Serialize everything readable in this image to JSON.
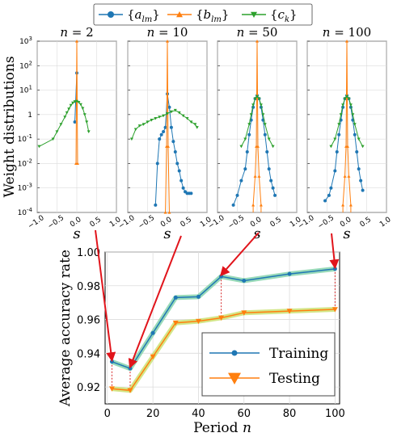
{
  "chart_data": [
    {
      "type": "line",
      "panel": "weight distributions",
      "ylabel": "Weight distributions",
      "yscale": "log",
      "ylim": [
        0.0001,
        1000
      ],
      "yticks": [
        "10^-4",
        "10^-3",
        "10^-2",
        "10^-1",
        "1",
        "10^1",
        "10^2",
        "10^3"
      ],
      "xlim": [
        -1.0,
        1.0
      ],
      "xticks": [
        "-1.0",
        "-0.5",
        "0.0",
        "0.5",
        "1.0"
      ],
      "xlabel": "s",
      "grid": true,
      "legend": {
        "placement": "top-center",
        "entries": [
          {
            "label": "{a_lm}",
            "color": "#1f77b4",
            "marker": "circle"
          },
          {
            "label": "{b_lm}",
            "color": "#ff7f0e",
            "marker": "triangle-up"
          },
          {
            "label": "{c_k}",
            "color": "#2ca02c",
            "marker": "triangle-down"
          }
        ]
      },
      "subplots": [
        {
          "title": "n = 2",
          "series": [
            {
              "name": "{a_lm}",
              "x": [
                -0.05,
                0.0
              ],
              "y": [
                0.5,
                50
              ]
            },
            {
              "name": "{b_lm}",
              "x": [
                -0.02,
                0.0,
                0.02
              ],
              "y": [
                0.01,
                1000,
                0.01
              ]
            },
            {
              "name": "{c_k}",
              "x": [
                -0.95,
                -0.6,
                -0.5,
                -0.4,
                -0.3,
                -0.25,
                -0.2,
                -0.15,
                -0.1,
                -0.05,
                0.0,
                0.05,
                0.1,
                0.15,
                0.2,
                0.25,
                0.3
              ],
              "y": [
                0.05,
                0.1,
                0.2,
                0.4,
                0.8,
                1.2,
                1.7,
                2.4,
                3.0,
                3.4,
                3.5,
                3.2,
                2.6,
                1.8,
                1.0,
                0.5,
                0.2
              ]
            }
          ]
        },
        {
          "title": "n = 10",
          "series": [
            {
              "name": "{a_lm}",
              "x": [
                -0.3,
                -0.25,
                -0.2,
                -0.15,
                -0.1,
                -0.05,
                0.0,
                0.05,
                0.1,
                0.15,
                0.2,
                0.25,
                0.3,
                0.35,
                0.4,
                0.45,
                0.5,
                0.55,
                0.6
              ],
              "y": [
                0.0002,
                0.01,
                0.1,
                0.15,
                0.2,
                0.3,
                7,
                2.0,
                0.3,
                0.08,
                0.03,
                0.01,
                0.005,
                0.002,
                0.001,
                0.0007,
                0.0006,
                0.0006,
                0.0006
              ]
            },
            {
              "name": "{b_lm}",
              "x": [
                -0.05,
                -0.02,
                0.0,
                0.02,
                0.05
              ],
              "y": [
                0.0001,
                0.05,
                1000,
                0.05,
                0.0001
              ]
            },
            {
              "name": "{c_k}",
              "x": [
                -0.9,
                -0.8,
                -0.7,
                -0.6,
                -0.5,
                -0.4,
                -0.3,
                -0.2,
                -0.1,
                0.0,
                0.1,
                0.2,
                0.3,
                0.4,
                0.5,
                0.6,
                0.7,
                0.75
              ],
              "y": [
                0.1,
                0.25,
                0.35,
                0.4,
                0.5,
                0.6,
                0.7,
                0.8,
                0.9,
                1.1,
                1.3,
                1.5,
                1.2,
                0.9,
                0.7,
                0.5,
                0.4,
                0.3
              ]
            }
          ]
        },
        {
          "title": "n = 50",
          "series": [
            {
              "name": "{a_lm}",
              "x": [
                -0.6,
                -0.5,
                -0.4,
                -0.3,
                -0.25,
                -0.2,
                -0.15,
                -0.1,
                -0.05,
                0.0,
                0.05,
                0.1,
                0.15,
                0.2,
                0.25,
                0.3,
                0.35,
                0.4,
                0.45
              ],
              "y": [
                0.0002,
                0.0005,
                0.002,
                0.006,
                0.03,
                0.15,
                0.6,
                2.0,
                4.5,
                6.0,
                4.5,
                2.0,
                0.6,
                0.15,
                0.03,
                0.006,
                0.002,
                0.001,
                0.0005
              ]
            },
            {
              "name": "{b_lm}",
              "x": [
                -0.1,
                -0.05,
                -0.02,
                0.0,
                0.02,
                0.05,
                0.1
              ],
              "y": [
                0.0002,
                0.003,
                0.05,
                1000,
                0.05,
                0.003,
                0.0002
              ]
            },
            {
              "name": "{c_k}",
              "x": [
                -0.4,
                -0.3,
                -0.2,
                -0.15,
                -0.1,
                -0.05,
                0.0,
                0.05,
                0.1,
                0.15,
                0.2,
                0.3,
                0.4
              ],
              "y": [
                0.05,
                0.1,
                0.4,
                1.0,
                2.5,
                4.5,
                5.5,
                4.5,
                2.5,
                1.0,
                0.4,
                0.1,
                0.05
              ]
            }
          ]
        },
        {
          "title": "n = 100",
          "series": [
            {
              "name": "{a_lm}",
              "x": [
                -0.55,
                -0.45,
                -0.4,
                -0.3,
                -0.25,
                -0.2,
                -0.15,
                -0.1,
                -0.05,
                0.0,
                0.05,
                0.1,
                0.15,
                0.2,
                0.25,
                0.3,
                0.35,
                0.4
              ],
              "y": [
                0.0003,
                0.0005,
                0.001,
                0.005,
                0.03,
                0.15,
                0.6,
                2.0,
                4.5,
                6.0,
                4.5,
                2.0,
                0.6,
                0.15,
                0.03,
                0.006,
                0.002,
                0.0008
              ]
            },
            {
              "name": "{b_lm}",
              "x": [
                -0.1,
                -0.05,
                -0.02,
                0.0,
                0.02,
                0.05,
                0.1
              ],
              "y": [
                0.0002,
                0.003,
                0.05,
                1000,
                0.05,
                0.003,
                0.0002
              ]
            },
            {
              "name": "{c_k}",
              "x": [
                -0.4,
                -0.3,
                -0.2,
                -0.15,
                -0.1,
                -0.05,
                0.0,
                0.05,
                0.1,
                0.15,
                0.2,
                0.3,
                0.4
              ],
              "y": [
                0.05,
                0.1,
                0.4,
                1.0,
                2.5,
                4.5,
                5.5,
                4.5,
                2.5,
                1.0,
                0.4,
                0.1,
                0.05
              ]
            }
          ]
        }
      ]
    },
    {
      "type": "line",
      "panel": "accuracy",
      "xlabel": "Period n",
      "ylabel": "Average accuracy rate",
      "xlim": [
        -1,
        102
      ],
      "ylim": [
        0.91,
        1.0
      ],
      "xticks": [
        0,
        20,
        40,
        60,
        80,
        100
      ],
      "yticks": [
        0.92,
        0.94,
        0.96,
        0.98,
        1.0
      ],
      "grid": true,
      "legend": {
        "placement": "lower-right"
      },
      "x": [
        2,
        10,
        20,
        30,
        40,
        50,
        60,
        80,
        100
      ],
      "series": [
        {
          "name": "Training",
          "color": "#1f77b4",
          "marker": "circle",
          "values": [
            0.935,
            0.931,
            0.952,
            0.973,
            0.9735,
            0.9855,
            0.983,
            0.987,
            0.99
          ]
        },
        {
          "name": "Testing",
          "color": "#ff7f0e",
          "marker": "triangle-down",
          "values": [
            0.919,
            0.918,
            0.938,
            0.958,
            0.959,
            0.961,
            0.964,
            0.965,
            0.966
          ]
        }
      ],
      "highlighted_periods": [
        2,
        10,
        50,
        100
      ]
    }
  ]
}
